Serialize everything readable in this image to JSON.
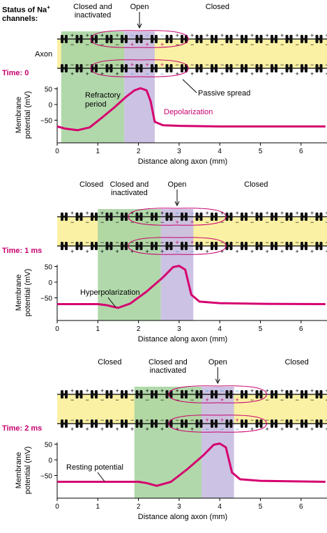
{
  "header": {
    "status_line1": "Status of Na",
    "status_sup": "+",
    "status_line2": "channels:",
    "axon": "Axon"
  },
  "shared": {
    "closed": "Closed",
    "closed_inactivated_1": "Closed and",
    "closed_inactivated_2": "inactivated",
    "open": "Open",
    "xlabel": "Distance along axon (mm)",
    "ylabel_1": "Membrane",
    "ylabel_2": "potential (mV)",
    "xticks": [
      "0",
      "1",
      "2",
      "3",
      "4",
      "5",
      "6"
    ],
    "yticks": [
      "50",
      "0",
      "−50"
    ]
  },
  "colors": {
    "accent": "#c8006e",
    "axon_fill": "#fbf1a4",
    "refractory_zone": "#a8d4a2",
    "open_zone": "#c9bfe1",
    "curve": "#d5006f",
    "na_negative": "#3a8fd0"
  },
  "panels": [
    {
      "time": "Time: 0",
      "top": 0,
      "labels": {
        "refractory_1": "Refractory",
        "refractory_2": "period",
        "depolarization": "Depolarization",
        "passive": "Passive spread"
      },
      "chart_data": {
        "type": "line",
        "xlabel": "Distance along axon (mm)",
        "ylabel": "Membrane potential (mV)",
        "xlim": [
          0,
          6.6
        ],
        "ylim": [
          -85,
          70
        ],
        "zones": [
          {
            "name": "closed-inactivated",
            "x0": 0.1,
            "x1": 1.65
          },
          {
            "name": "open",
            "x0": 1.65,
            "x1": 2.4
          }
        ],
        "x": [
          0,
          0.2,
          0.5,
          0.8,
          1.1,
          1.4,
          1.7,
          1.9,
          2.05,
          2.2,
          2.3,
          2.4,
          2.6,
          3,
          4,
          5,
          6.6
        ],
        "y": [
          -70,
          -77,
          -82,
          -73,
          -42,
          -10,
          25,
          45,
          52,
          45,
          10,
          -55,
          -66,
          -68,
          -70,
          -70,
          -70
        ]
      }
    },
    {
      "time": "Time: 1 ms",
      "top": 255,
      "labels": {
        "hyperpolarization": "Hyperpolarization"
      },
      "chart_data": {
        "type": "line",
        "xlabel": "Distance along axon (mm)",
        "ylabel": "Membrane potential (mV)",
        "xlim": [
          0,
          6.6
        ],
        "ylim": [
          -85,
          70
        ],
        "zones": [
          {
            "name": "closed-inactivated",
            "x0": 1.0,
            "x1": 2.55
          },
          {
            "name": "open",
            "x0": 2.55,
            "x1": 3.35
          }
        ],
        "x": [
          0,
          0.5,
          1.0,
          1.2,
          1.5,
          1.8,
          2.2,
          2.6,
          2.85,
          3.0,
          3.15,
          3.3,
          3.5,
          4,
          5,
          6.6
        ],
        "y": [
          -70,
          -70,
          -70,
          -73,
          -82,
          -68,
          -30,
          15,
          48,
          52,
          40,
          -40,
          -62,
          -67,
          -69,
          -70
        ]
      }
    },
    {
      "time": "Time: 2 ms",
      "top": 510,
      "labels": {
        "resting": "Resting potential"
      },
      "chart_data": {
        "type": "line",
        "xlabel": "Distance along axon (mm)",
        "ylabel": "Membrane potential (mV)",
        "xlim": [
          0,
          6.6
        ],
        "ylim": [
          -85,
          70
        ],
        "zones": [
          {
            "name": "closed-inactivated",
            "x0": 1.9,
            "x1": 3.55
          },
          {
            "name": "open",
            "x0": 3.55,
            "x1": 4.35
          }
        ],
        "x": [
          0,
          1,
          2.0,
          2.2,
          2.45,
          2.8,
          3.2,
          3.6,
          3.85,
          4.0,
          4.15,
          4.3,
          4.5,
          5,
          6,
          6.6
        ],
        "y": [
          -70,
          -70,
          -70,
          -74,
          -83,
          -70,
          -30,
          15,
          48,
          52,
          40,
          -40,
          -62,
          -67,
          -69,
          -70
        ]
      }
    }
  ]
}
